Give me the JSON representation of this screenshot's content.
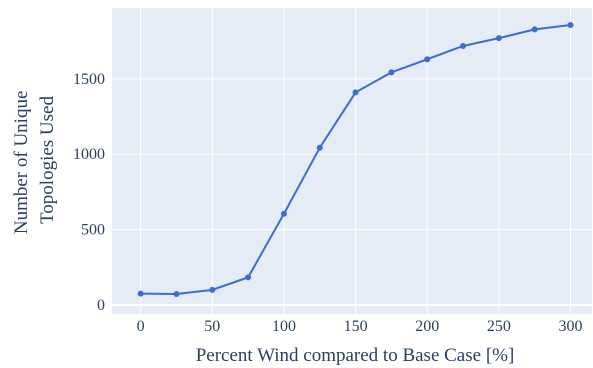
{
  "chart_data": {
    "type": "line",
    "title": "",
    "xlabel": "Percent Wind compared to Base Case [%]",
    "ylabel_lines": [
      "Number of Unique",
      "Topologies Used"
    ],
    "x": [
      0,
      25,
      50,
      75,
      100,
      125,
      150,
      175,
      200,
      225,
      250,
      275,
      300
    ],
    "series": [
      {
        "values": [
          75,
          73,
          100,
          183,
          605,
          1043,
          1410,
          1543,
          1630,
          1718,
          1770,
          1828,
          1857
        ]
      }
    ],
    "xlim": [
      -20,
      315
    ],
    "ylim": [
      -60,
      1970
    ],
    "xticks": [
      0,
      50,
      100,
      150,
      200,
      250,
      300
    ],
    "yticks": [
      0,
      500,
      1000,
      1500
    ],
    "grid": true,
    "colors": {
      "plot_background": "#e5ecf6",
      "grid": "#ffffff",
      "line": "#3d6dd1",
      "text": "#2a3f5f"
    }
  }
}
